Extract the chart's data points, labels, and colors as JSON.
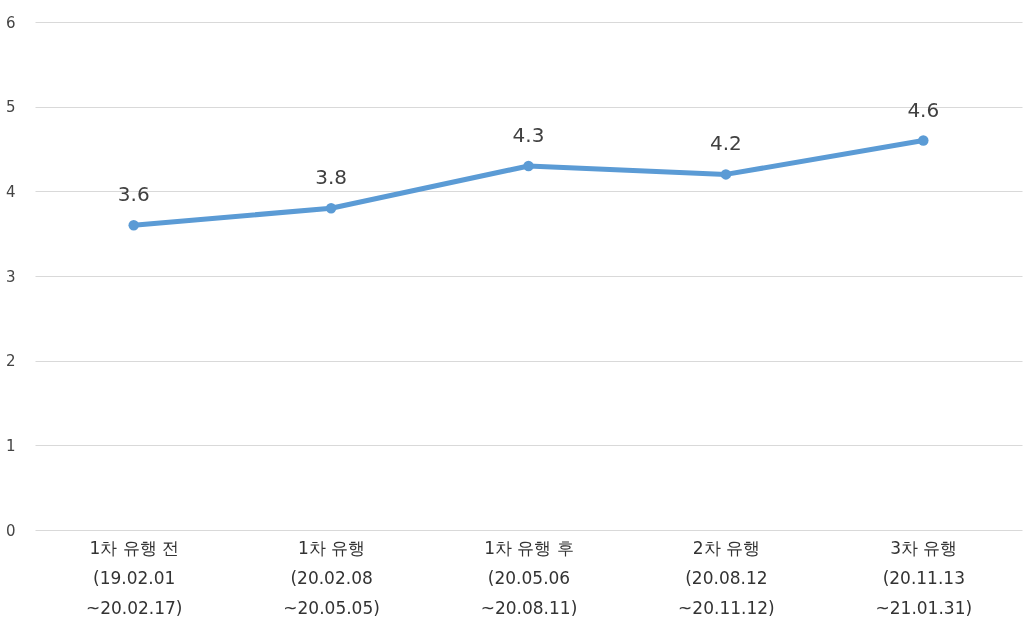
{
  "chart_data": {
    "type": "line",
    "categories": [
      "1차 유행 전\n(19.02.01\n~20.02.17)",
      "1차 유행\n(20.02.08\n~20.05.05)",
      "1차 유행 후\n(20.05.06\n~20.08.11)",
      "2차 유행\n(20.08.12\n~20.11.12)",
      "3차 유행\n(20.11.13\n~21.01.31)"
    ],
    "series": [
      {
        "color": "#5b9bd5",
        "values": [
          3.6,
          3.8,
          4.3,
          4.2,
          4.6
        ]
      }
    ],
    "ylim": [
      0,
      6
    ],
    "yticks": [
      0,
      1,
      2,
      3,
      4,
      5,
      6
    ],
    "grid": "y",
    "marker": "circle",
    "line_style": "solid",
    "data_labels": true,
    "legend": false
  }
}
